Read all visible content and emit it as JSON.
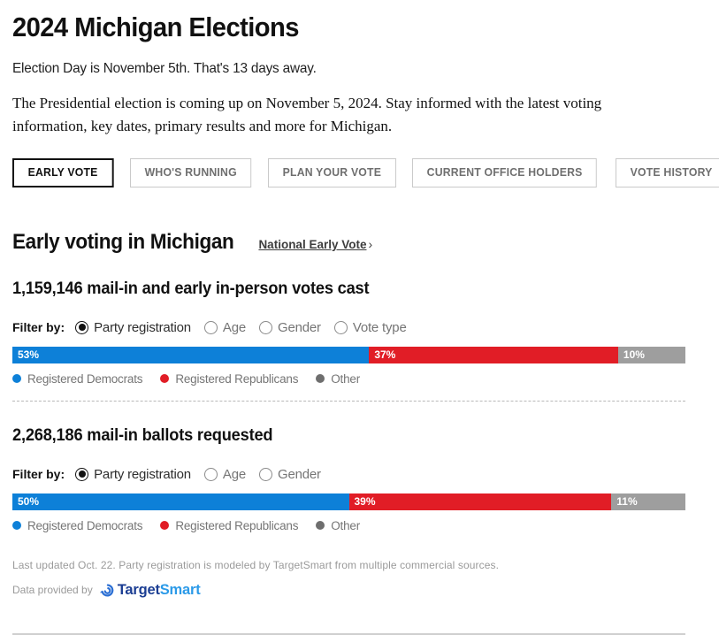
{
  "page": {
    "title": "2024 Michigan Elections",
    "subtitle": "Election Day is November 5th. That's 13 days away.",
    "intro": "The Presidential election is coming up on November 5, 2024. Stay informed with the latest voting information, key dates, primary results and more for Michigan."
  },
  "tabs": [
    {
      "label": "EARLY VOTE",
      "active": true
    },
    {
      "label": "WHO'S RUNNING",
      "active": false
    },
    {
      "label": "PLAN YOUR VOTE",
      "active": false
    },
    {
      "label": "CURRENT OFFICE HOLDERS",
      "active": false
    },
    {
      "label": "VOTE HISTORY",
      "active": false
    }
  ],
  "section": {
    "heading": "Early voting in Michigan",
    "link_label": "National Early Vote",
    "link_chevron": "›"
  },
  "colors": {
    "democrat": "#0D80D8",
    "republican": "#E11D26",
    "other_segment": "#9E9E9E",
    "other_legend": "#6E6E6E",
    "segments": [
      "#0D80D8",
      "#E11D26",
      "#9E9E9E"
    ]
  },
  "chart_data": [
    {
      "type": "bar",
      "title": "1,159,146 mail-in and early in-person votes cast",
      "filter_label": "Filter by:",
      "filters": [
        {
          "label": "Party registration",
          "selected": true
        },
        {
          "label": "Age",
          "selected": false
        },
        {
          "label": "Gender",
          "selected": false
        },
        {
          "label": "Vote type",
          "selected": false
        }
      ],
      "categories": [
        "Registered Democrats",
        "Registered Republicans",
        "Other"
      ],
      "values": [
        53,
        37,
        10
      ],
      "labels": [
        "53%",
        "37%",
        "10%"
      ],
      "xlim": [
        0,
        100
      ],
      "orientation": "horizontal-stacked",
      "legend_position": "bottom"
    },
    {
      "type": "bar",
      "title": "2,268,186 mail-in ballots requested",
      "filter_label": "Filter by:",
      "filters": [
        {
          "label": "Party registration",
          "selected": true
        },
        {
          "label": "Age",
          "selected": false
        },
        {
          "label": "Gender",
          "selected": false
        }
      ],
      "categories": [
        "Registered Democrats",
        "Registered Republicans",
        "Other"
      ],
      "values": [
        50,
        39,
        11
      ],
      "labels": [
        "50%",
        "39%",
        "11%"
      ],
      "xlim": [
        0,
        100
      ],
      "orientation": "horizontal-stacked",
      "legend_position": "bottom"
    }
  ],
  "legend": [
    {
      "label": "Registered Democrats"
    },
    {
      "label": "Registered Republicans"
    },
    {
      "label": "Other"
    }
  ],
  "footer": {
    "updated_note": "Last updated Oct. 22. Party registration is modeled by TargetSmart from multiple commercial sources.",
    "provider_prefix": "Data provided by",
    "provider_name_primary": "Target",
    "provider_name_secondary": "Smart"
  }
}
